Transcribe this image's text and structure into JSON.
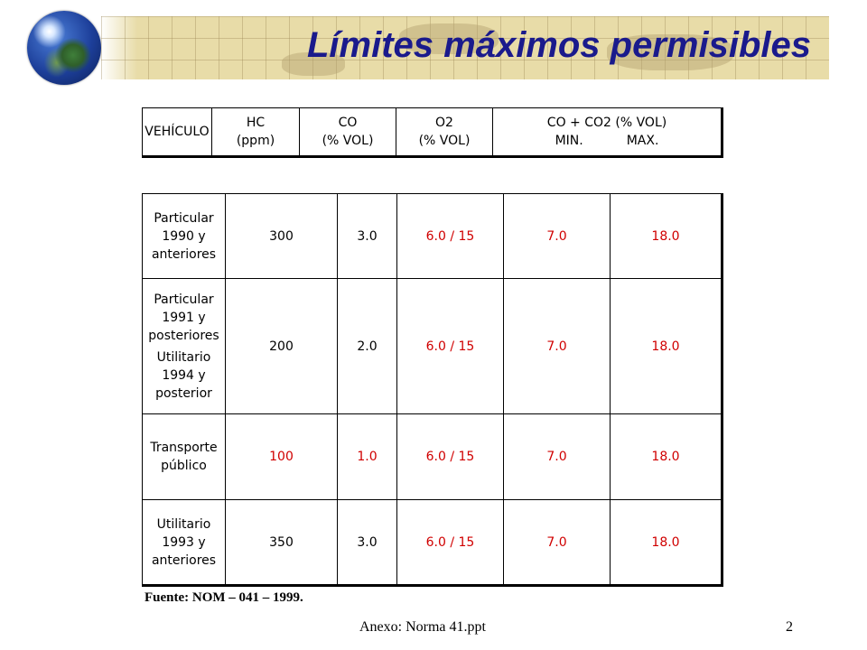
{
  "slide": {
    "title": "Límites máximos permisibles",
    "source_note": "Fuente: NOM – 041 – 1999.",
    "file_name": "Anexo: Norma 41.ppt",
    "page_number": "2"
  },
  "header": {
    "vehiculo": "VEHÍCULO",
    "hc_line1": "HC",
    "hc_line2": "(ppm)",
    "co_line1": "CO",
    "co_line2": "(% VOL)",
    "o2_line1": "O2",
    "o2_line2": "(% VOL)",
    "coco2_line1": "CO + CO2 (% VOL)",
    "coco2_min": "MIN.",
    "coco2_max": "MAX."
  },
  "rows": [
    {
      "vehicle": [
        "Particular",
        "1990 y",
        "anteriores"
      ],
      "hc": "300",
      "co": "3.0",
      "o2": "6.0 / 15",
      "min": "7.0",
      "max": "18.0"
    },
    {
      "vehicle": [
        "Particular",
        "1991 y",
        "posteriores",
        "Utilitario",
        "1994 y",
        "posterior"
      ],
      "hc": "200",
      "co": "2.0",
      "o2": "6.0 / 15",
      "min": "7.0",
      "max": "18.0"
    },
    {
      "vehicle": [
        "Transporte",
        "público"
      ],
      "hc": "100",
      "co": "1.0",
      "o2": "6.0 / 15",
      "min": "7.0",
      "max": "18.0"
    },
    {
      "vehicle": [
        "Utilitario",
        "1993 y",
        "anteriores"
      ],
      "hc": "350",
      "co": "3.0",
      "o2": "6.0 / 15",
      "min": "7.0",
      "max": "18.0"
    }
  ],
  "colors": {
    "title": "#1a1a8c",
    "highlight_red": "#d00000",
    "banner": "#e8dca8"
  },
  "icons": {
    "globe": "globe-icon"
  }
}
